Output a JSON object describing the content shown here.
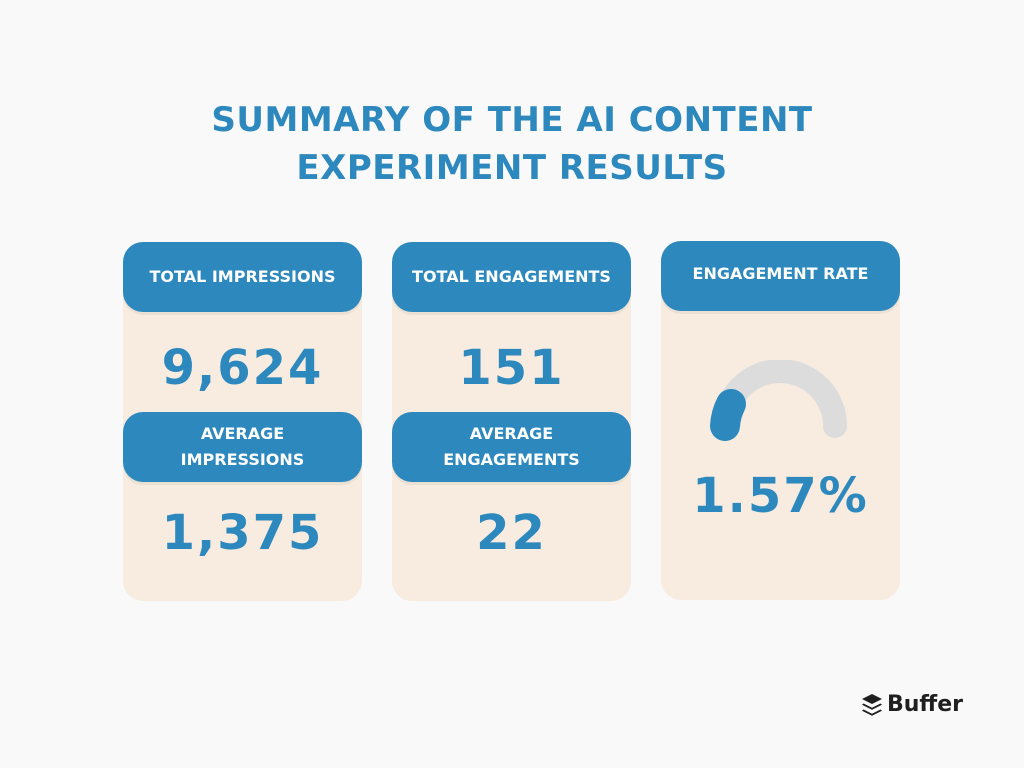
{
  "title": {
    "line1": "SUMMARY OF THE AI CONTENT",
    "line2": "EXPERIMENT RESULTS"
  },
  "cards": {
    "impressions": {
      "total_label": "TOTAL IMPRESSIONS",
      "total_value": "9,624",
      "average_label_line1": "AVERAGE",
      "average_label_line2": "IMPRESSIONS",
      "average_value": "1,375"
    },
    "engagements": {
      "total_label": "TOTAL ENGAGEMENTS",
      "total_value": "151",
      "average_label_line1": "AVERAGE",
      "average_label_line2": "ENGAGEMENTS",
      "average_value": "22"
    },
    "rate": {
      "label": "ENGAGEMENT RATE",
      "value": "1.57%",
      "gauge_percent": 1.57
    }
  },
  "brand": {
    "name": "Buffer",
    "icon": "buffer-logo-icon"
  },
  "colors": {
    "accent": "#2c88bd",
    "card": "#f7ecdf",
    "track": "#dcdcdc",
    "background": "#f9f9f9"
  }
}
